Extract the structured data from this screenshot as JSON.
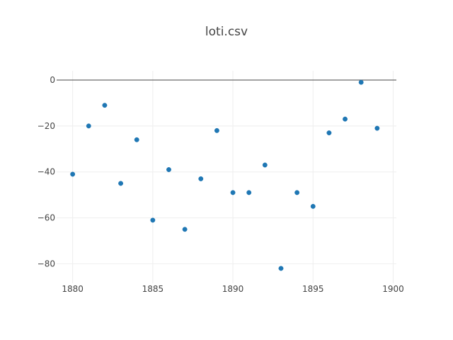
{
  "chart_data": {
    "type": "scatter",
    "title": "loti.csv",
    "xlabel": "",
    "ylabel": "",
    "xlim": [
      1879,
      1900.2
    ],
    "ylim": [
      -88.5,
      4
    ],
    "xticks": [
      1880,
      1885,
      1890,
      1895,
      1900
    ],
    "yticks": [
      0,
      -20,
      -40,
      -60,
      -80
    ],
    "grid": true,
    "legend": "none",
    "colors": {
      "marker": "#1f77b4",
      "grid": "#eeeeee",
      "zero_line": "#444444",
      "text": "#444444"
    },
    "series": [
      {
        "x": [
          1880,
          1881,
          1882,
          1883,
          1884,
          1885,
          1886,
          1887,
          1888,
          1889,
          1890,
          1891,
          1892,
          1893,
          1894,
          1895,
          1896,
          1897,
          1898,
          1899
        ],
        "y": [
          -41,
          -20,
          -11,
          -45,
          -26,
          -61,
          -39,
          -65,
          -43,
          -22,
          -49,
          -49,
          -37,
          -82,
          -49,
          -55,
          -23,
          -17,
          -1,
          -21
        ]
      }
    ]
  }
}
